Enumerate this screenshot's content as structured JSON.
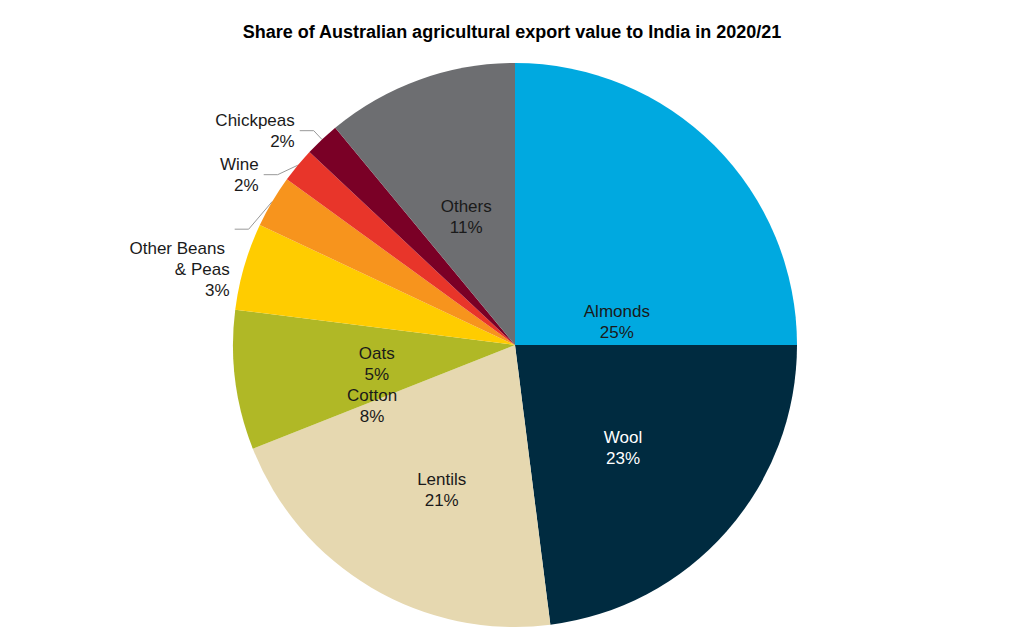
{
  "chart_data": {
    "type": "pie",
    "title": "Share of Australian agricultural export value to India in 2020/21",
    "categories": [
      "Almonds",
      "Wool",
      "Lentils",
      "Cotton",
      "Oats",
      "Other Beans & Peas",
      "Wine",
      "Chickpeas",
      "Others"
    ],
    "values": [
      25,
      23,
      21,
      8,
      5,
      3,
      2,
      2,
      11
    ],
    "value_labels": [
      "25%",
      "23%",
      "21%",
      "8%",
      "5%",
      "3%",
      "2%",
      "2%",
      "11%"
    ],
    "colors": [
      "#00a9e0",
      "#002b40",
      "#e6d8b0",
      "#b0b826",
      "#ffcc00",
      "#f7941d",
      "#e8352a",
      "#7a0026",
      "#6d6e71"
    ],
    "data_labels": true
  }
}
